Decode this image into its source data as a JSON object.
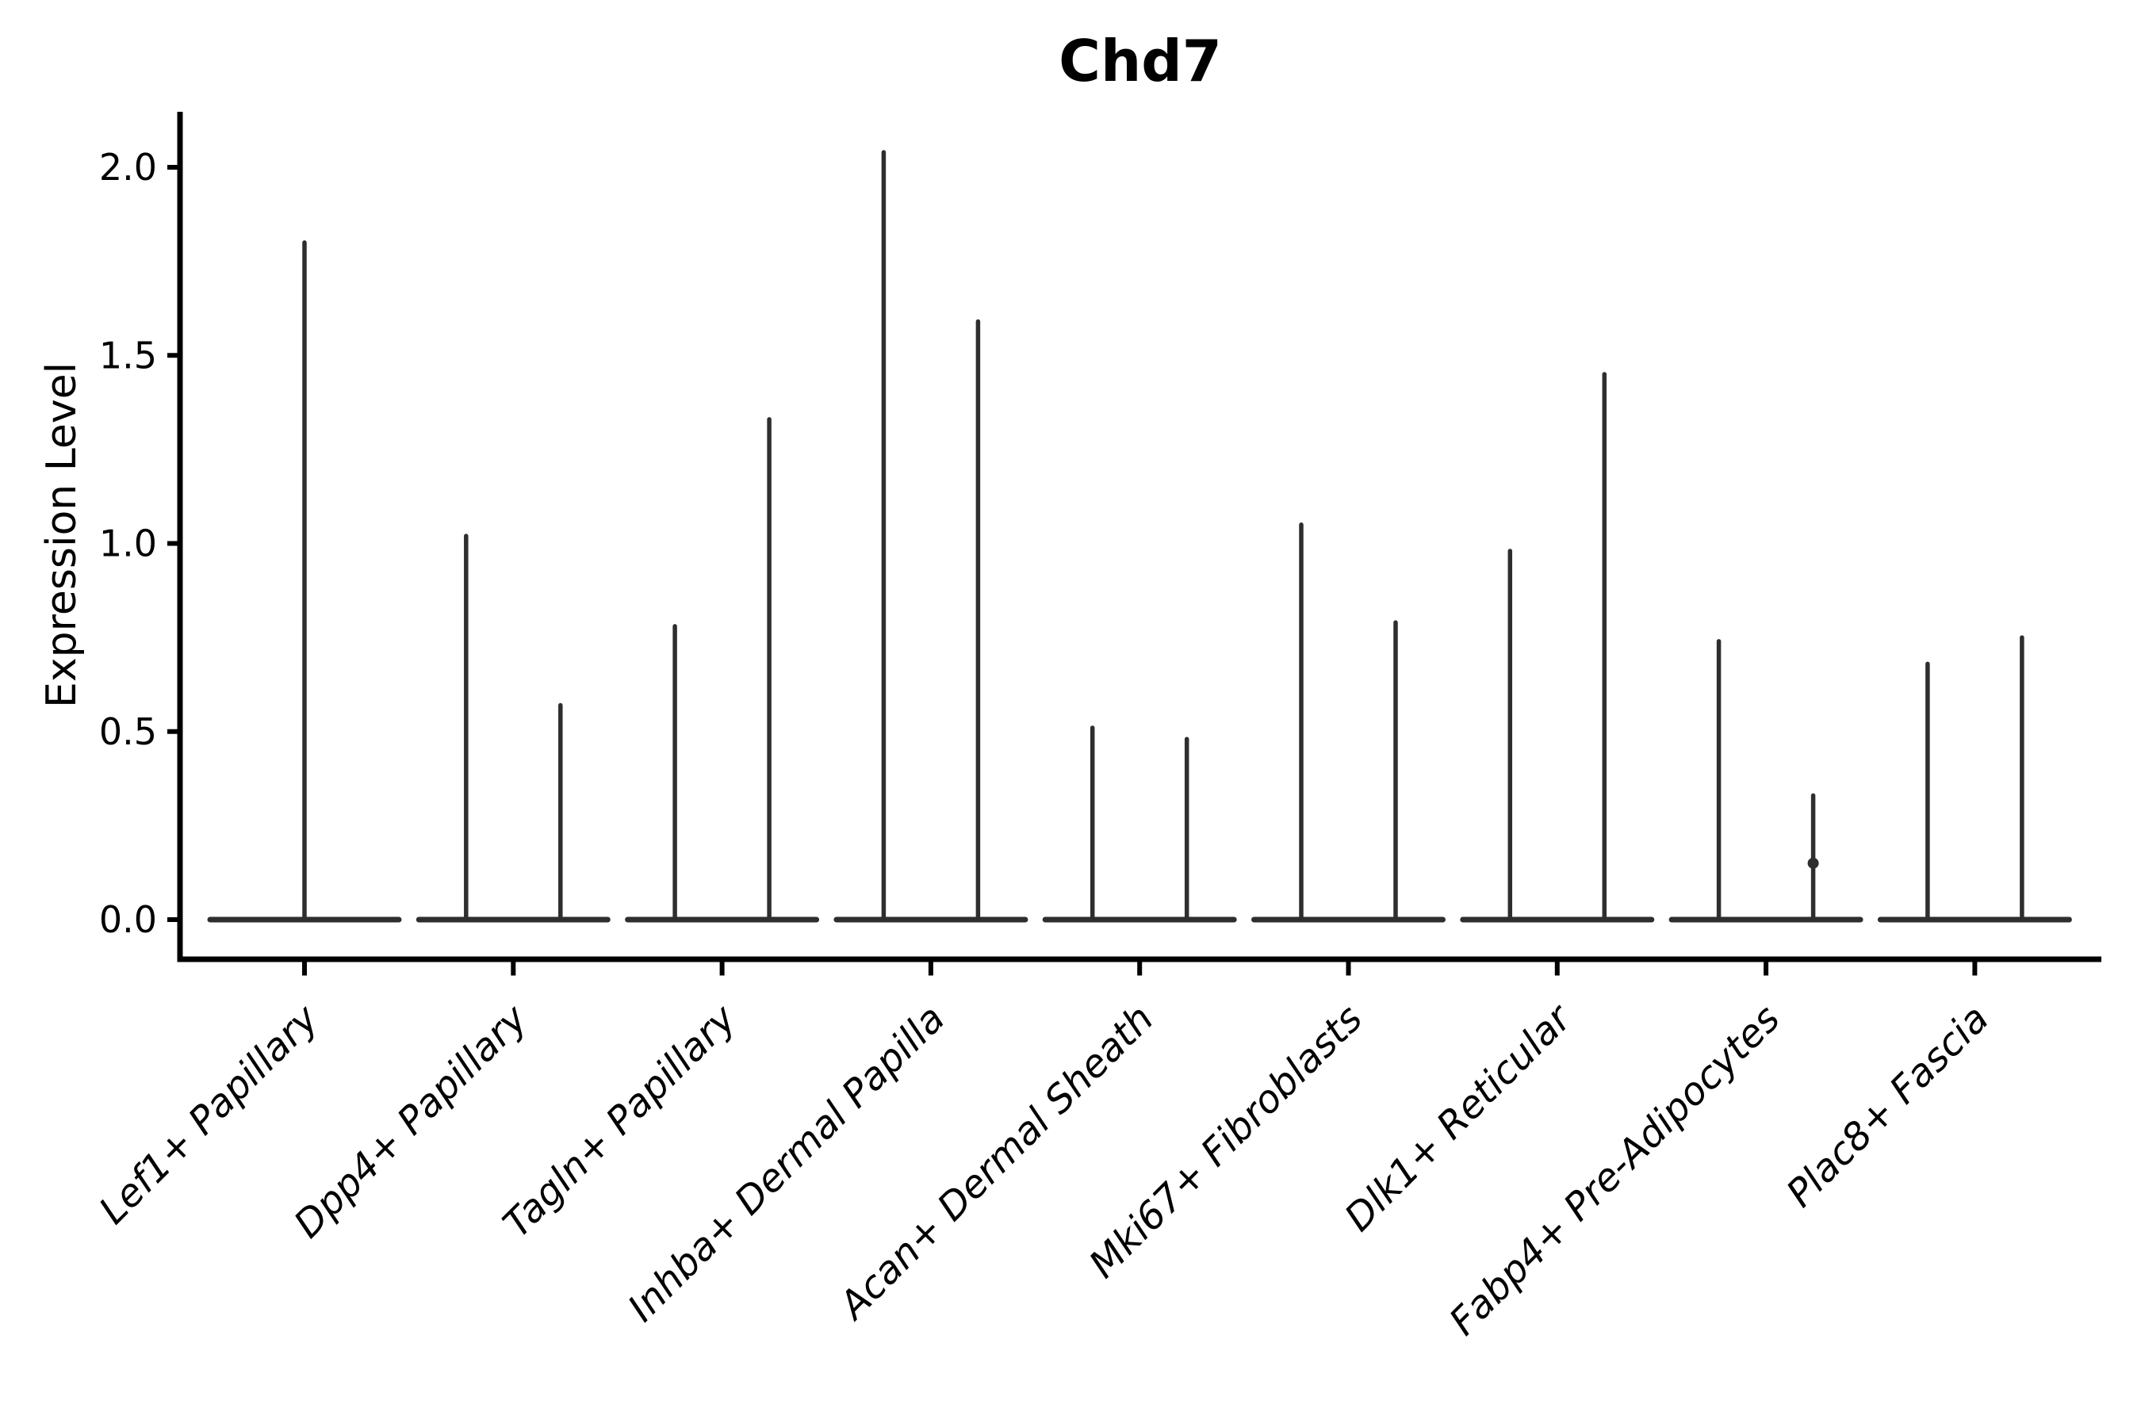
{
  "page": {
    "background": "#ffffff"
  },
  "chart_data": {
    "type": "violin",
    "title": "Chd7",
    "ylabel": "Expression Level",
    "xlabel": "",
    "ylim": [
      0,
      2.15
    ],
    "yticks": [
      0.0,
      0.5,
      1.0,
      1.5,
      2.0
    ],
    "ytick_labels": [
      "0.0",
      "0.5",
      "1.0",
      "1.5",
      "2.0"
    ],
    "grid": false,
    "legend": null,
    "line_color": "#2e2e2e",
    "axis_color": "#000000",
    "baseline_value": 0.0,
    "violins": [
      {
        "category": "Lef1+ Papillary",
        "maxima": [
          1.8
        ]
      },
      {
        "category": "Dpp4+ Papillary",
        "maxima": [
          1.02,
          0.57
        ]
      },
      {
        "category": "Tagln+ Papillary",
        "maxima": [
          0.78,
          1.33
        ]
      },
      {
        "category": "Inhba+ Dermal Papilla",
        "maxima": [
          2.04,
          1.59
        ]
      },
      {
        "category": "Acan+ Dermal Sheath",
        "maxima": [
          0.51,
          0.48
        ]
      },
      {
        "category": "Mki67+ Fibroblasts",
        "maxima": [
          1.05,
          0.79
        ]
      },
      {
        "category": "Dlk1+ Reticular",
        "maxima": [
          0.98,
          1.45
        ]
      },
      {
        "category": "Fabp4+ Pre-Adipocytes",
        "maxima": [
          0.74,
          0.33
        ],
        "dots": [
          {
            "violin": 1,
            "value": 0.15
          }
        ]
      },
      {
        "category": "Plac8+ Fascia",
        "maxima": [
          0.68,
          0.75
        ]
      }
    ]
  }
}
